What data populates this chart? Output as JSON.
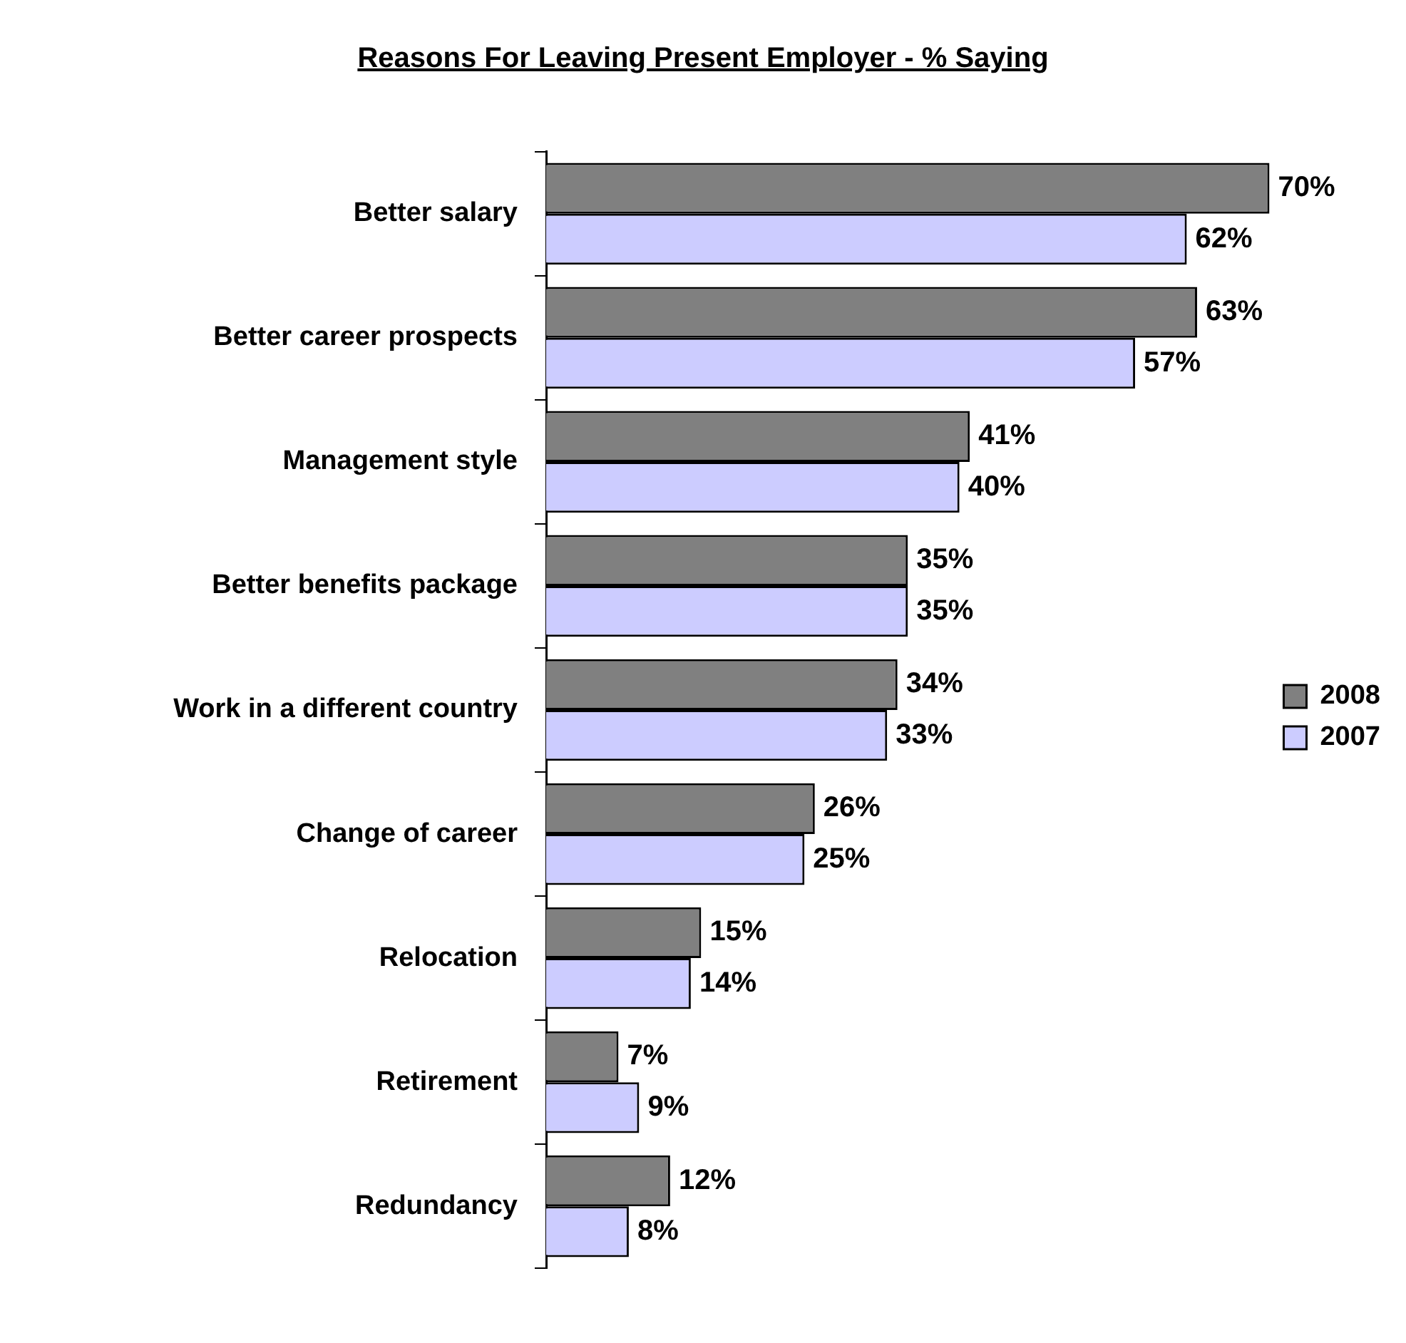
{
  "chart_data": {
    "type": "bar",
    "orientation": "horizontal",
    "title": "Reasons For Leaving Present Employer - % Saying",
    "categories": [
      "Better salary",
      "Better career prospects",
      "Management style",
      "Better benefits package",
      "Work in a different country",
      "Change of career",
      "Relocation",
      "Retirement",
      "Redundancy"
    ],
    "series": [
      {
        "name": "2008",
        "color": "#808080",
        "values": [
          70,
          63,
          41,
          35,
          34,
          26,
          15,
          7,
          12
        ],
        "value_labels": [
          "70%",
          "63%",
          "41%",
          "35%",
          "34%",
          "26%",
          "15%",
          "7%",
          "12%"
        ]
      },
      {
        "name": "2007",
        "color": "#ccccff",
        "values": [
          62,
          57,
          40,
          35,
          33,
          25,
          14,
          9,
          8
        ],
        "value_labels": [
          "62%",
          "57%",
          "40%",
          "35%",
          "33%",
          "25%",
          "14%",
          "9%",
          "8%"
        ]
      }
    ],
    "legend": "right"
  }
}
